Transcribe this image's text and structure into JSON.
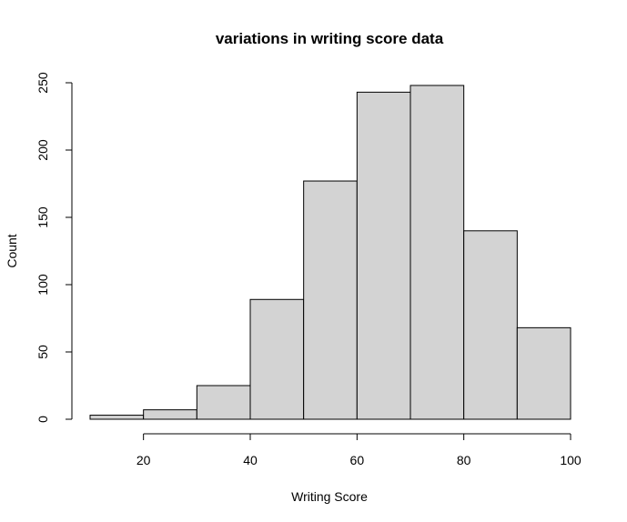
{
  "chart_data": {
    "type": "bar",
    "title": "variations in writing score data",
    "xlabel": "Writing Score",
    "ylabel": "Count",
    "bins": [
      {
        "start": 10,
        "end": 20,
        "count": 3
      },
      {
        "start": 20,
        "end": 30,
        "count": 7
      },
      {
        "start": 30,
        "end": 40,
        "count": 25
      },
      {
        "start": 40,
        "end": 50,
        "count": 89
      },
      {
        "start": 50,
        "end": 60,
        "count": 177
      },
      {
        "start": 60,
        "end": 70,
        "count": 243
      },
      {
        "start": 70,
        "end": 80,
        "count": 248
      },
      {
        "start": 80,
        "end": 90,
        "count": 140
      },
      {
        "start": 90,
        "end": 100,
        "count": 68
      }
    ],
    "xlim": [
      10,
      100
    ],
    "ylim": [
      0,
      250
    ],
    "xticks": [
      20,
      40,
      60,
      80,
      100
    ],
    "yticks": [
      0,
      50,
      100,
      150,
      200,
      250
    ],
    "bar_color": "#d3d3d3",
    "grid": false
  }
}
